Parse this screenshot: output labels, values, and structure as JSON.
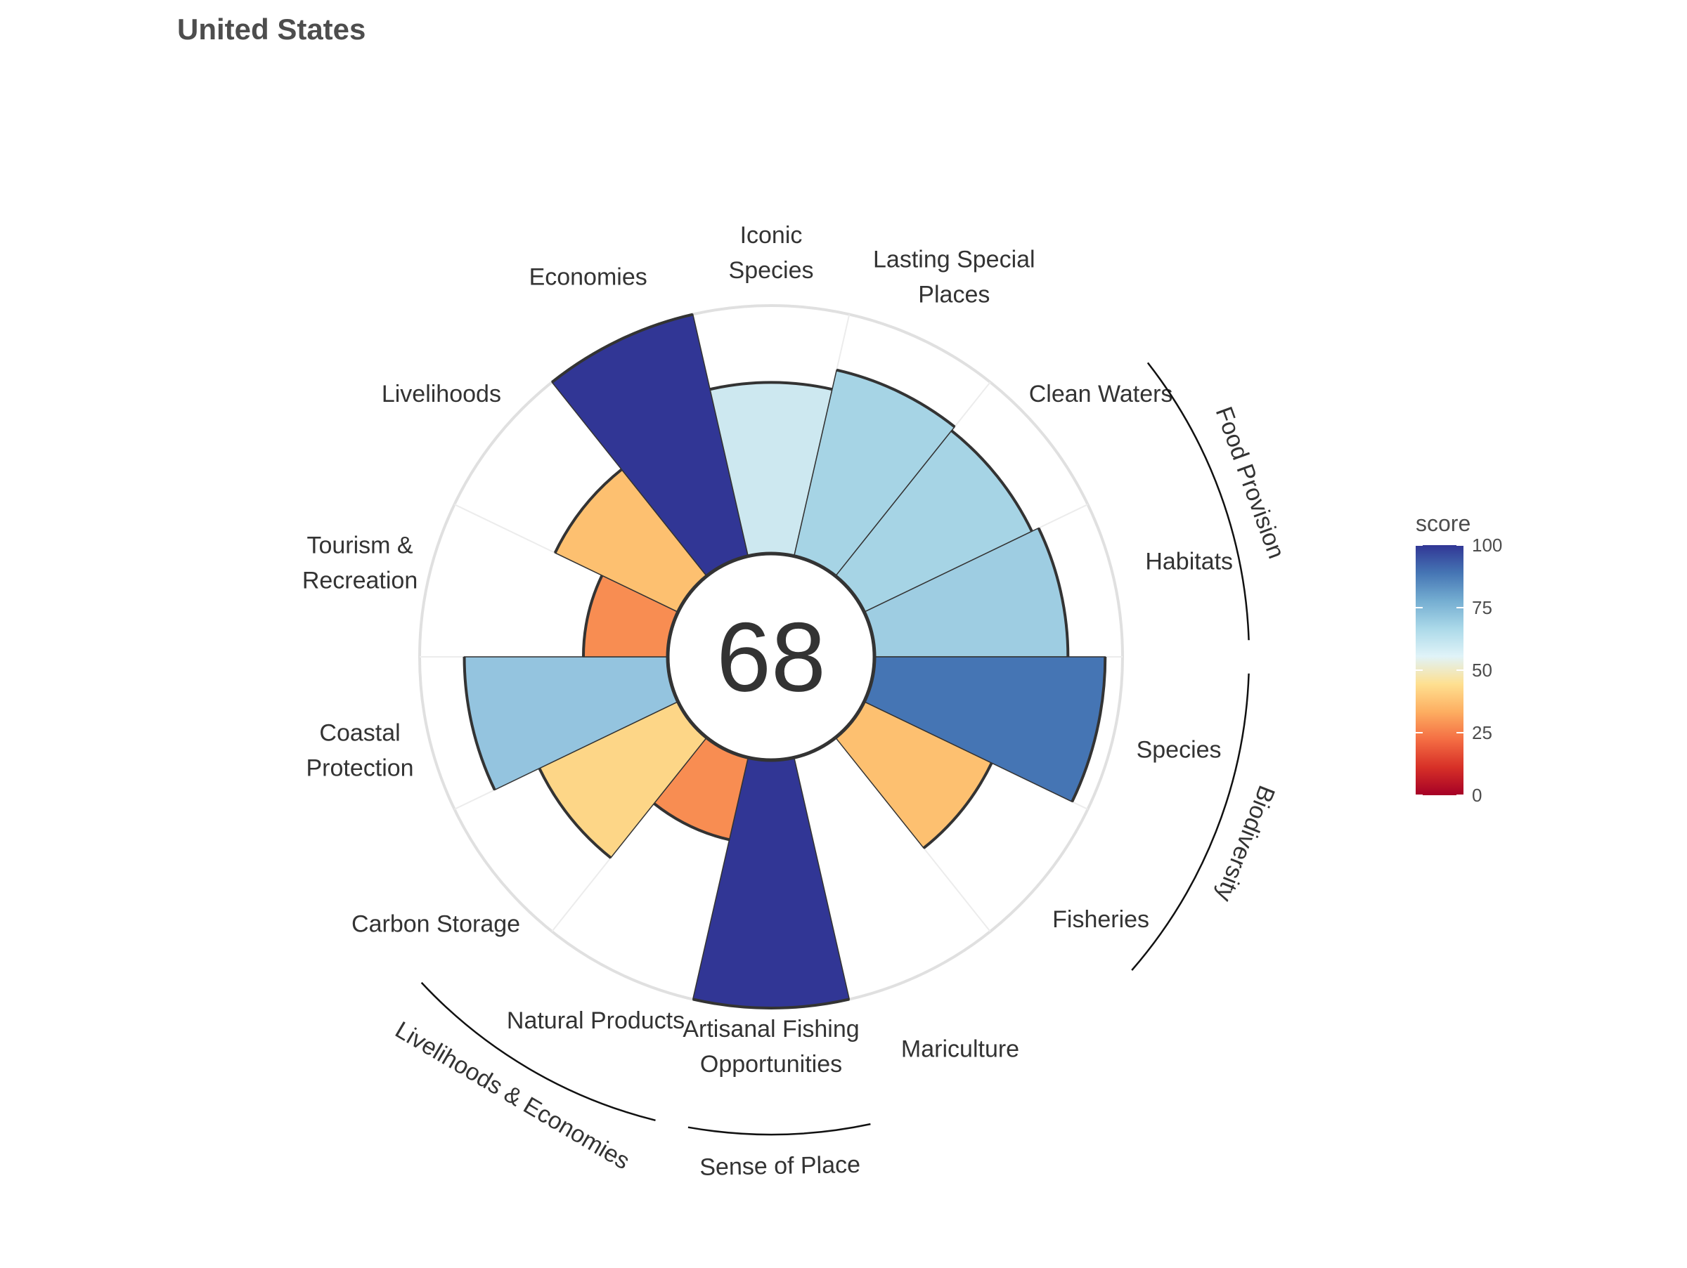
{
  "chart_data": {
    "type": "polar-bar",
    "title": "United States",
    "center_score": "68",
    "goals": [
      {
        "label": "Fisheries",
        "value": 57,
        "color": "#fdc070"
      },
      {
        "label": "Mariculture",
        "value": 0,
        "color": "#fdc070"
      },
      {
        "label": "Artisanal Fishing Opportunities",
        "value": 100,
        "color": "#313695"
      },
      {
        "label": "Natural Products",
        "value": 34,
        "color": "#f88d52"
      },
      {
        "label": "Carbon Storage",
        "value": 62,
        "color": "#fdd687"
      },
      {
        "label": "Coastal Protection",
        "value": 82,
        "color": "#94c4df"
      },
      {
        "label": "Tourism & Recreation",
        "value": 34,
        "color": "#f88d52"
      },
      {
        "label": "Livelihoods",
        "value": 55,
        "color": "#fdc070"
      },
      {
        "label": "Economies",
        "value": 100,
        "color": "#313695"
      },
      {
        "label": "Iconic Species",
        "value": 69,
        "color": "#cde8f0"
      },
      {
        "label": "Lasting Special Places",
        "value": 77,
        "color": "#a6d4e5"
      },
      {
        "label": "Clean Waters",
        "value": 75,
        "color": "#a6d4e5"
      },
      {
        "label": "Habitats",
        "value": 78,
        "color": "#9ecde2"
      },
      {
        "label": "Species",
        "value": 93,
        "color": "#4575b4"
      }
    ],
    "groups": [
      {
        "label": "Food Provision"
      },
      {
        "label": "Biodiversity"
      },
      {
        "label": "Sense of Place"
      },
      {
        "label": "Livelihoods & Economies"
      }
    ],
    "labels_display": {
      "fisheries": [
        "Fisheries"
      ],
      "mariculture": [
        "Mariculture"
      ],
      "artisanal": [
        "Artisanal Fishing",
        "Opportunities"
      ],
      "natural_products": [
        "Natural Products"
      ],
      "carbon_storage": [
        "Carbon Storage"
      ],
      "coastal_protection": [
        "Coastal",
        "Protection"
      ],
      "tourism": [
        "Tourism &",
        "Recreation"
      ],
      "livelihoods": [
        "Livelihoods"
      ],
      "economies": [
        "Economies"
      ],
      "iconic_species": [
        "Iconic",
        "Species"
      ],
      "special_places": [
        "Lasting Special",
        "Places"
      ],
      "clean_waters": [
        "Clean Waters"
      ],
      "habitats": [
        "Habitats"
      ],
      "species": [
        "Species"
      ]
    },
    "legend": {
      "title": "score",
      "ticks": [
        "0",
        "25",
        "50",
        "75",
        "100"
      ],
      "colors": [
        "#a50026",
        "#d73027",
        "#f46d43",
        "#fdae61",
        "#fee090",
        "#e0f3f8",
        "#abd9e9",
        "#74add1",
        "#4575b4",
        "#313695"
      ]
    },
    "ylim": [
      0,
      100
    ],
    "grid": true
  }
}
